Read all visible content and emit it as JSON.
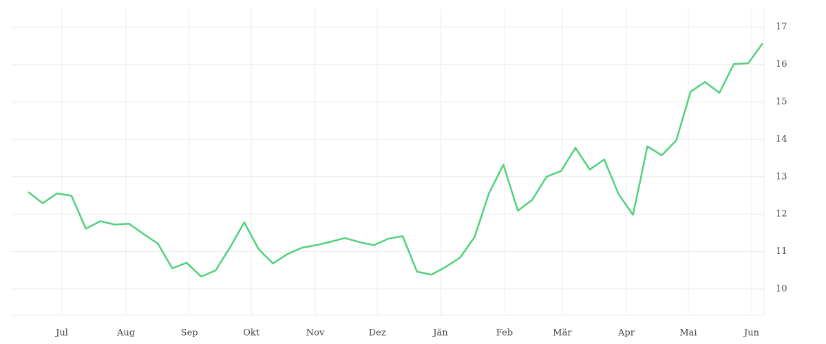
{
  "chart_data": {
    "type": "line",
    "x": [
      0,
      1,
      2,
      3,
      4,
      5,
      6,
      7,
      8,
      9,
      10,
      11,
      12,
      13,
      14,
      15,
      16,
      17,
      18,
      19,
      20,
      21,
      22,
      23,
      24,
      25,
      26,
      27,
      28,
      29,
      30,
      31,
      32,
      33,
      34,
      35,
      36,
      37,
      38,
      39,
      40,
      41,
      42,
      43,
      44,
      45,
      46,
      47,
      48,
      49,
      50,
      51
    ],
    "series": [
      {
        "color": "#4fd17a",
        "values": [
          12.59,
          12.29,
          12.55,
          12.49,
          11.61,
          11.81,
          11.72,
          11.74,
          11.47,
          11.21,
          10.55,
          10.7,
          10.33,
          10.49,
          11.1,
          11.78,
          11.06,
          10.68,
          10.93,
          11.1,
          11.17,
          11.26,
          11.36,
          11.25,
          11.17,
          11.34,
          11.41,
          10.46,
          10.38,
          10.59,
          10.84,
          11.39,
          12.56,
          13.32,
          12.09,
          12.38,
          13.0,
          13.15,
          13.77,
          13.19,
          13.46,
          12.53,
          11.98,
          13.81,
          13.57,
          13.97,
          15.27,
          15.53,
          15.24,
          16.01,
          16.03,
          16.56
        ]
      }
    ],
    "xlim": [
      -1.15,
      51.1
    ],
    "xticks": [
      {
        "value": 2.34,
        "label": "Jul"
      },
      {
        "value": 6.79,
        "label": "Aug"
      },
      {
        "value": 11.19,
        "label": "Sep"
      },
      {
        "value": 15.49,
        "label": "Okt"
      },
      {
        "value": 19.93,
        "label": "Nov"
      },
      {
        "value": 24.24,
        "label": "Dez"
      },
      {
        "value": 28.63,
        "label": "Jän"
      },
      {
        "value": 33.08,
        "label": "Feb"
      },
      {
        "value": 37.09,
        "label": "Mär"
      },
      {
        "value": 41.54,
        "label": "Apr"
      },
      {
        "value": 45.84,
        "label": "Mai"
      },
      {
        "value": 50.24,
        "label": "Jun"
      }
    ],
    "ylim": [
      9.3,
      17.5
    ],
    "yticks": [
      10,
      11,
      12,
      13,
      14,
      15,
      16,
      17
    ],
    "grid": true
  }
}
